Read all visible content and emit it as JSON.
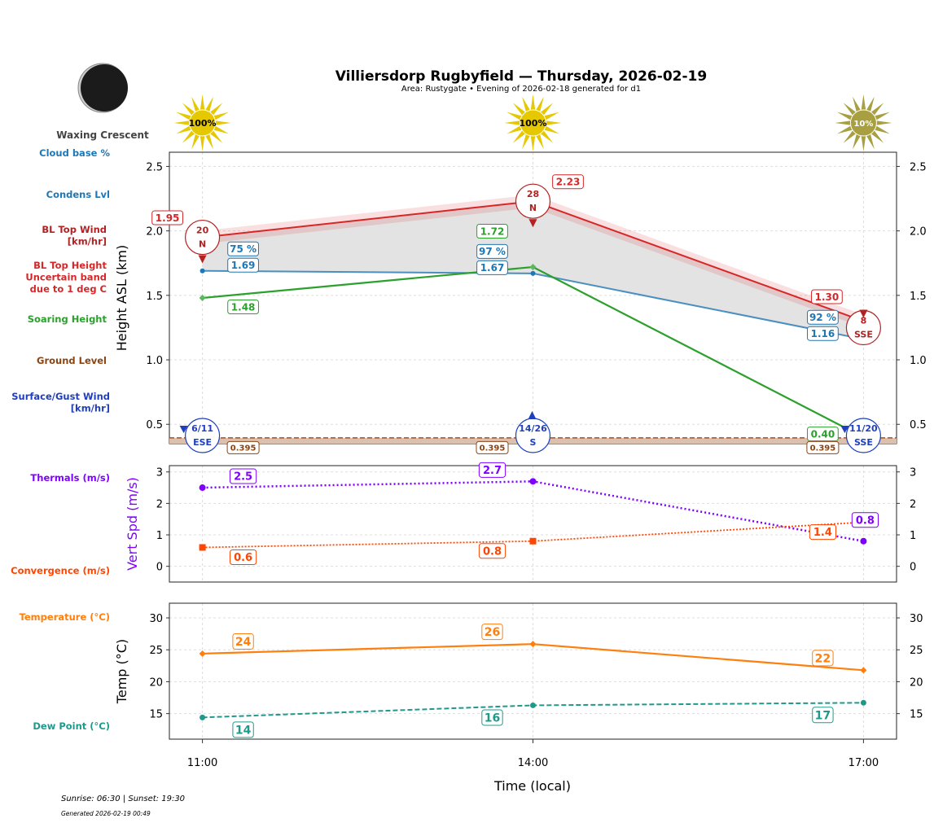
{
  "title": "Villiersdorp Rugbyfield — Thursday, 2026-02-19",
  "subtitle": "Area: Rustygate • Evening of 2026-02-18 generated for d1",
  "moon_phase": "Waxing Crescent",
  "footer": {
    "sun": "Sunrise: 06:30 | Sunset: 19:30",
    "generated": "Generated 2026-02-19 00:49"
  },
  "colors": {
    "bl_top": "#d62728",
    "condens": "#1f77b4",
    "soaring": "#2ca02c",
    "ground": "#8b4513",
    "surface_wind": "#1f3fbf",
    "thermals": "#8000ff",
    "convergence": "#ff4500",
    "temperature": "#ff7f0e",
    "dew_point": "#20998c",
    "sun": "#e6c800",
    "sun_low": "#a8a040"
  },
  "left_labels": {
    "cloud_base": "Cloud base %",
    "condens": "Condens Lvl",
    "bl_wind": [
      "BL Top Wind",
      "[km/hr]"
    ],
    "bl_height": [
      "BL Top Height",
      "Uncertain band",
      "due to 1 deg C"
    ],
    "soaring": "Soaring Height",
    "ground": "Ground Level",
    "surface_wind": [
      "Surface/Gust Wind",
      "[km/hr]"
    ],
    "thermals": "Thermals (m/s)",
    "convergence": "Convergence (m/s)",
    "temperature": "Temperature (°C)",
    "dew_point": "Dew Point (°C)"
  },
  "chart_data": [
    {
      "type": "line",
      "ylabel": "Height ASL (km)",
      "x": [
        "11:00",
        "14:00",
        "17:00"
      ],
      "xlim_hours": [
        10.7,
        17.3
      ],
      "ylim": [
        0.35,
        2.61
      ],
      "yticks": [
        "0.5",
        "1.0",
        "1.5",
        "2.0",
        "2.5"
      ],
      "grid": true,
      "sun_percent": [
        "100%",
        "100%",
        "10%"
      ],
      "bl_top": {
        "values": [
          1.95,
          2.23,
          1.3
        ],
        "labels": [
          "1.95",
          "2.23",
          "1.30"
        ],
        "uncertainty": 0.05
      },
      "condens": {
        "values": [
          1.69,
          1.67,
          1.16
        ],
        "labels": [
          "1.69",
          "1.67",
          "1.16"
        ]
      },
      "cloud_base_pct": [
        "75 %",
        "97 %",
        "92 %"
      ],
      "soaring": {
        "values": [
          1.48,
          1.72,
          0.4
        ],
        "labels": [
          "1.48",
          "1.72",
          "0.40"
        ]
      },
      "ground": {
        "values": [
          0.395,
          0.395,
          0.395
        ],
        "labels": [
          "0.395",
          "0.395",
          "0.395"
        ]
      },
      "bl_wind": [
        {
          "speed": "20",
          "dir": "N"
        },
        {
          "speed": "28",
          "dir": "N"
        },
        {
          "speed": "8",
          "dir": "SSE"
        }
      ],
      "surface_wind": [
        {
          "speed": "6/11",
          "dir": "ESE"
        },
        {
          "speed": "14/26",
          "dir": "S"
        },
        {
          "speed": "11/20",
          "dir": "SSE"
        }
      ]
    },
    {
      "type": "line",
      "ylabel": "Vert Spd (m/s)",
      "ylim": [
        -0.5,
        3.2
      ],
      "yticks": [
        "0",
        "1",
        "2",
        "3"
      ],
      "grid": true,
      "thermals": {
        "values": [
          2.5,
          2.7,
          0.8
        ],
        "labels": [
          "2.5",
          "2.7",
          "0.8"
        ]
      },
      "convergence": {
        "values": [
          0.6,
          0.8,
          1.4
        ],
        "labels": [
          "0.6",
          "0.8",
          "1.4"
        ]
      }
    },
    {
      "type": "line",
      "ylabel": "Temp (°C)",
      "xlabel": "Time (local)",
      "ylim": [
        11,
        32.3
      ],
      "yticks": [
        "15",
        "20",
        "25",
        "30"
      ],
      "grid": true,
      "temperature": {
        "values": [
          24.4,
          25.9,
          21.8
        ],
        "labels": [
          "24",
          "26",
          "22"
        ]
      },
      "dew_point": {
        "values": [
          14.4,
          16.3,
          16.7
        ],
        "labels": [
          "14",
          "16",
          "17"
        ]
      }
    }
  ]
}
